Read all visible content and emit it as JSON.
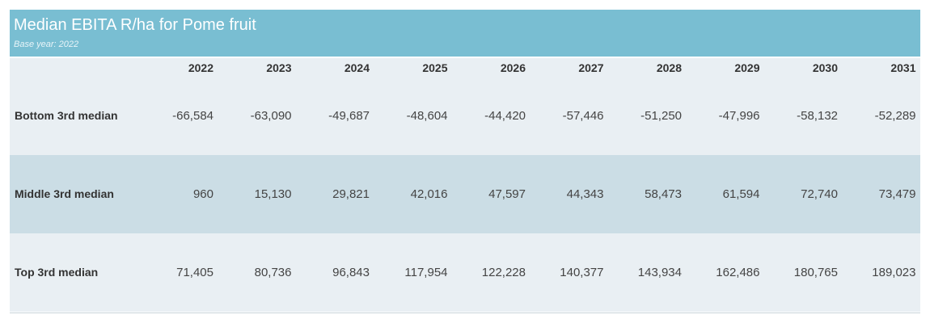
{
  "header": {
    "title": "Median EBITA R/ha for Pome fruit",
    "subtitle": "Base year: 2022",
    "background_color": "#79bed2"
  },
  "chart_data": {
    "type": "table",
    "title": "Median EBITA R/ha for Pome fruit",
    "subtitle": "Base year: 2022",
    "columns": [
      "2022",
      "2023",
      "2024",
      "2025",
      "2026",
      "2027",
      "2028",
      "2029",
      "2030",
      "2031"
    ],
    "rows": [
      {
        "label": "Bottom 3rd median",
        "values": [
          "-66,584",
          "-63,090",
          "-49,687",
          "-48,604",
          "-44,420",
          "-57,446",
          "-51,250",
          "-47,996",
          "-58,132",
          "-52,289"
        ],
        "background_color": "#e9eff3"
      },
      {
        "label": "Middle 3rd median",
        "values": [
          "960",
          "15,130",
          "29,821",
          "42,016",
          "47,597",
          "44,343",
          "58,473",
          "61,594",
          "72,740",
          "73,479"
        ],
        "background_color": "#cbdde5"
      },
      {
        "label": "Top 3rd median",
        "values": [
          "71,405",
          "80,736",
          "96,843",
          "117,954",
          "122,228",
          "140,377",
          "143,934",
          "162,486",
          "180,765",
          "189,023"
        ],
        "background_color": "#e9eff3"
      }
    ]
  }
}
